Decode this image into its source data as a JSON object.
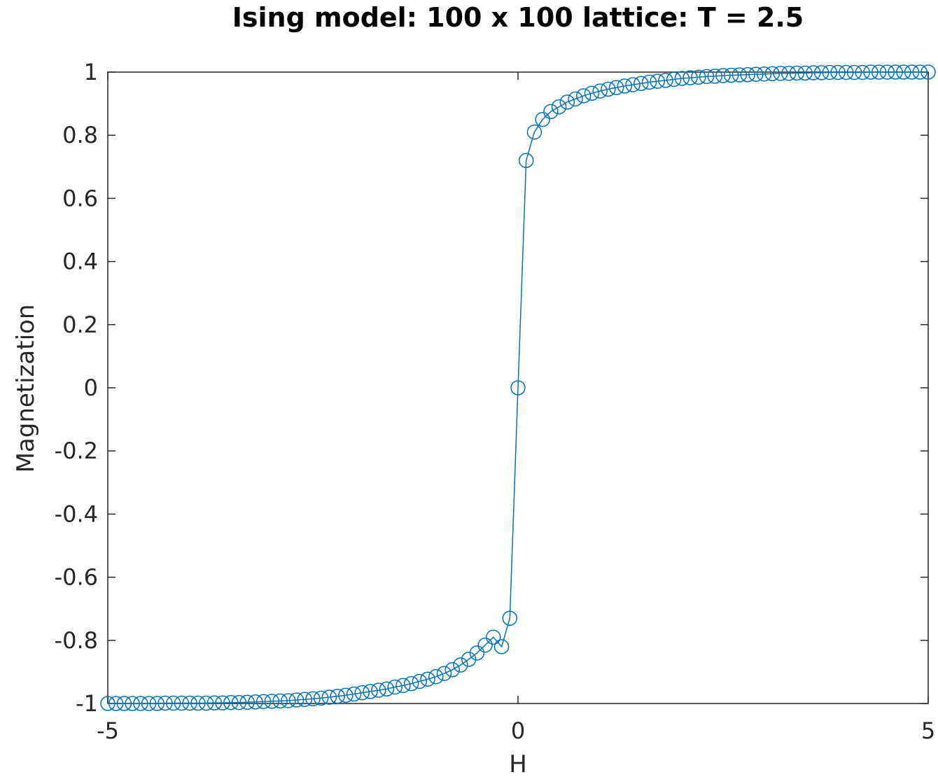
{
  "chart_data": {
    "type": "line",
    "title": "Ising model: 100 x 100 lattice: T = 2.5",
    "xlabel": "H",
    "ylabel": "Magnetization",
    "xlim": [
      -5,
      5
    ],
    "ylim": [
      -1,
      1
    ],
    "xticks": [
      "-5",
      "0",
      "5"
    ],
    "yticks": [
      "-1",
      "-0.8",
      "-0.6",
      "-0.4",
      "-0.2",
      "0",
      "0.2",
      "0.4",
      "0.6",
      "0.8",
      "1"
    ],
    "grid": false,
    "marker": "circle",
    "color": "#0072BD",
    "series": [
      {
        "x": [
          -5.0,
          -4.9,
          -4.8,
          -4.7,
          -4.6,
          -4.5,
          -4.4,
          -4.3,
          -4.2,
          -4.1,
          -4.0,
          -3.9,
          -3.8,
          -3.7,
          -3.6,
          -3.5,
          -3.4,
          -3.3,
          -3.2,
          -3.1,
          -3.0,
          -2.9,
          -2.8,
          -2.7,
          -2.6,
          -2.5,
          -2.4,
          -2.3,
          -2.2,
          -2.1,
          -2.0,
          -1.9,
          -1.8,
          -1.7,
          -1.6,
          -1.5,
          -1.4,
          -1.3,
          -1.2,
          -1.1,
          -1.0,
          -0.9,
          -0.8,
          -0.7,
          -0.6,
          -0.5,
          -0.4,
          -0.3,
          -0.2,
          -0.1,
          0.0,
          0.1,
          0.2,
          0.3,
          0.4,
          0.5,
          0.6,
          0.7,
          0.8,
          0.9,
          1.0,
          1.1,
          1.2,
          1.3,
          1.4,
          1.5,
          1.6,
          1.7,
          1.8,
          1.9,
          2.0,
          2.1,
          2.2,
          2.3,
          2.4,
          2.5,
          2.6,
          2.7,
          2.8,
          2.9,
          3.0,
          3.1,
          3.2,
          3.3,
          3.4,
          3.5,
          3.6,
          3.7,
          3.8,
          3.9,
          4.0,
          4.1,
          4.2,
          4.3,
          4.4,
          4.5,
          4.6,
          4.7,
          4.8,
          4.9,
          5.0
        ],
        "y": [
          -1.0,
          -1.0,
          -1.0,
          -1.0,
          -1.0,
          -1.0,
          -1.0,
          -0.999,
          -0.999,
          -0.999,
          -0.999,
          -0.999,
          -0.999,
          -0.998,
          -0.998,
          -0.997,
          -0.997,
          -0.996,
          -0.995,
          -0.994,
          -0.993,
          -0.992,
          -0.991,
          -0.989,
          -0.987,
          -0.985,
          -0.983,
          -0.98,
          -0.977,
          -0.974,
          -0.97,
          -0.966,
          -0.962,
          -0.958,
          -0.954,
          -0.948,
          -0.943,
          -0.937,
          -0.93,
          -0.923,
          -0.915,
          -0.905,
          -0.893,
          -0.878,
          -0.86,
          -0.84,
          -0.815,
          -0.79,
          -0.82,
          -0.73,
          0.0,
          0.72,
          0.81,
          0.85,
          0.875,
          0.89,
          0.905,
          0.915,
          0.925,
          0.933,
          0.94,
          0.946,
          0.951,
          0.956,
          0.96,
          0.964,
          0.968,
          0.971,
          0.974,
          0.977,
          0.98,
          0.982,
          0.984,
          0.986,
          0.987,
          0.989,
          0.99,
          0.991,
          0.992,
          0.993,
          0.994,
          0.995,
          0.996,
          0.996,
          0.997,
          0.997,
          0.998,
          0.998,
          0.999,
          0.999,
          0.999,
          0.999,
          0.999,
          1.0,
          1.0,
          1.0,
          1.0,
          1.0,
          1.0,
          1.0,
          1.0
        ]
      }
    ]
  }
}
